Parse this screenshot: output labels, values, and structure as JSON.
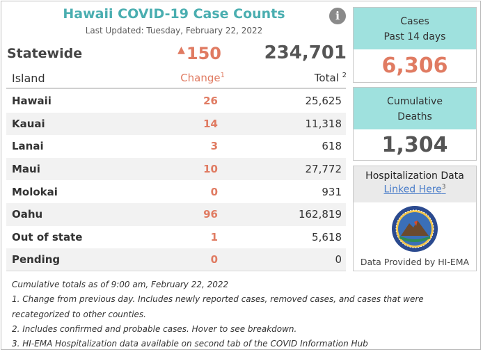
{
  "header": {
    "title": "Hawaii COVID-19 Case Counts",
    "last_updated": "Last Updated: Tuesday, February 22, 2022",
    "info_icon": "info-icon"
  },
  "statewide": {
    "label": "Statewide",
    "change": "150",
    "total": "234,701"
  },
  "table": {
    "col_island": "Island",
    "col_change": "Change",
    "col_change_note": "1",
    "col_total": "Total",
    "col_total_note": "2",
    "rows": [
      {
        "island": "Hawaii",
        "change": "26",
        "total": "25,625"
      },
      {
        "island": "Kauai",
        "change": "14",
        "total": "11,318"
      },
      {
        "island": "Lanai",
        "change": "3",
        "total": "618"
      },
      {
        "island": "Maui",
        "change": "10",
        "total": "27,772"
      },
      {
        "island": "Molokai",
        "change": "0",
        "total": "931"
      },
      {
        "island": "Oahu",
        "change": "96",
        "total": "162,819"
      },
      {
        "island": "Out of state",
        "change": "1",
        "total": "5,618"
      },
      {
        "island": "Pending",
        "change": "0",
        "total": "0"
      }
    ]
  },
  "cards": {
    "cases_line1": "Cases",
    "cases_line2": "Past 14 days",
    "cases_value": "6,306",
    "deaths_line1": "Cumulative",
    "deaths_line2": "Deaths",
    "deaths_value": "1,304",
    "hosp_title": "Hospitalization Data",
    "hosp_link": "Linked Here",
    "hosp_link_note": "3",
    "hosp_provider": "Data Provided by HI-EMA"
  },
  "notes": [
    "Cumulative totals as of 9:00 am, February 22, 2022",
    "1. Change from previous day. Includes newly reported cases, removed cases, and cases that were",
    "recategorized to other counties.",
    "2. Includes confirmed and probable cases. Hover to see breakdown.",
    "3. HI-EMA Hospitalization data available on second tab of the COVID Information Hub"
  ],
  "colors": {
    "accent_teal": "#4aaeb0",
    "card_teal": "#9fe1de",
    "change_orange": "#e07b62",
    "link_blue": "#4a7dc9"
  }
}
